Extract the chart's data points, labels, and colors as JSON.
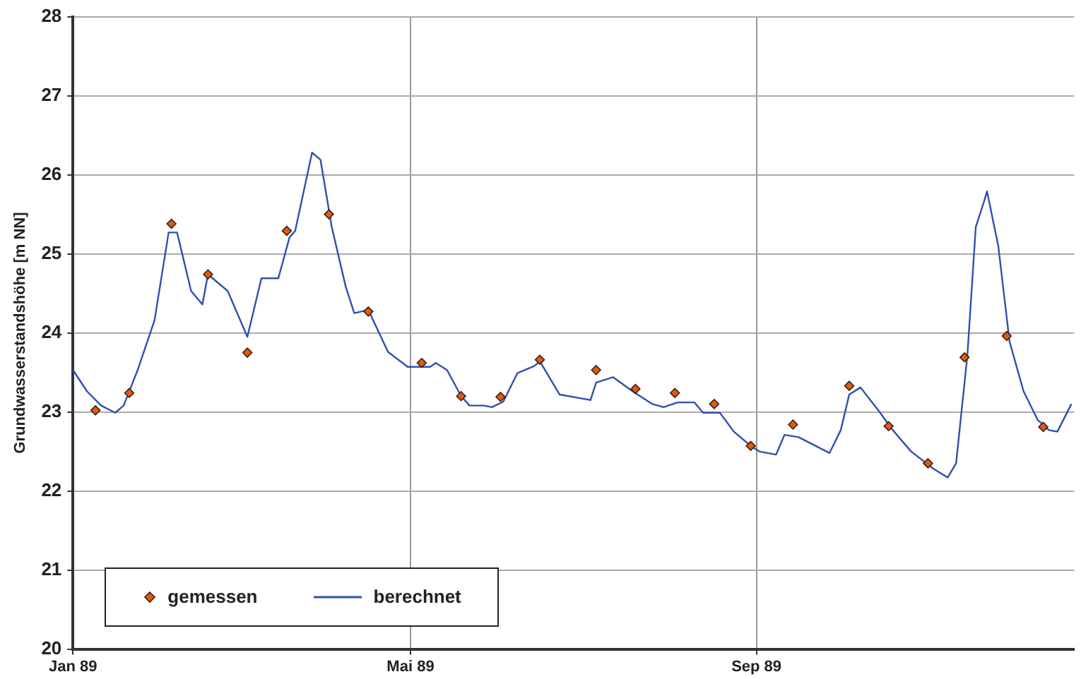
{
  "chart_data": {
    "type": "line",
    "ylabel": "Grundwasserstandshöhe [m NN]",
    "xlim": [
      "1989-01-01",
      "1989-12-23"
    ],
    "xticks": [
      {
        "value": "1989-01-01",
        "label": "Jan 89"
      },
      {
        "value": "1989-05-01",
        "label": "Mai 89"
      },
      {
        "value": "1989-09-01",
        "label": "Sep 89"
      }
    ],
    "ylim": [
      20,
      28
    ],
    "yticks": [
      20,
      21,
      22,
      23,
      24,
      25,
      26,
      27,
      28
    ],
    "grid": true,
    "legend": "bottom left",
    "series": [
      {
        "name": "gemessen",
        "type": "scatter",
        "marker": "diamond",
        "color": "#e05a10",
        "x": [
          "1989-01-09",
          "1989-01-21",
          "1989-02-05",
          "1989-02-18",
          "1989-03-04",
          "1989-03-18",
          "1989-04-02",
          "1989-04-16",
          "1989-05-05",
          "1989-05-19",
          "1989-06-02",
          "1989-06-16",
          "1989-07-06",
          "1989-07-20",
          "1989-08-03",
          "1989-08-17",
          "1989-08-30",
          "1989-09-14",
          "1989-10-04",
          "1989-10-18",
          "1989-11-01",
          "1989-11-14",
          "1989-11-29",
          "1989-12-12"
        ],
        "values": [
          23.02,
          23.24,
          25.38,
          24.74,
          23.75,
          25.29,
          25.5,
          24.27,
          23.62,
          23.2,
          23.19,
          23.66,
          23.53,
          23.29,
          23.24,
          23.1,
          22.57,
          22.84,
          23.33,
          22.82,
          22.35,
          23.69,
          23.96,
          22.81
        ]
      },
      {
        "name": "berechnet",
        "type": "line",
        "marker": "none",
        "line_style": "solid",
        "color": "#3050b0",
        "x": [
          "1989-01-01",
          "1989-01-06",
          "1989-01-11",
          "1989-01-16",
          "1989-01-19",
          "1989-01-24",
          "1989-01-30",
          "1989-02-04",
          "1989-02-07",
          "1989-02-12",
          "1989-02-16",
          "1989-02-18",
          "1989-02-25",
          "1989-03-04",
          "1989-03-09",
          "1989-03-15",
          "1989-03-19",
          "1989-03-21",
          "1989-03-27",
          "1989-03-30",
          "1989-04-03",
          "1989-04-08",
          "1989-04-11",
          "1989-04-16",
          "1989-04-23",
          "1989-04-30",
          "1989-05-08",
          "1989-05-10",
          "1989-05-14",
          "1989-05-19",
          "1989-05-22",
          "1989-05-27",
          "1989-05-30",
          "1989-06-03",
          "1989-06-08",
          "1989-06-14",
          "1989-06-16",
          "1989-06-23",
          "1989-07-01",
          "1989-07-04",
          "1989-07-06",
          "1989-07-12",
          "1989-07-19",
          "1989-07-26",
          "1989-07-30",
          "1989-08-04",
          "1989-08-10",
          "1989-08-13",
          "1989-08-19",
          "1989-08-24",
          "1989-08-30",
          "1989-09-02",
          "1989-09-08",
          "1989-09-11",
          "1989-09-16",
          "1989-09-27",
          "1989-10-01",
          "1989-10-04",
          "1989-10-08",
          "1989-10-15",
          "1989-10-19",
          "1989-10-26",
          "1989-11-03",
          "1989-11-08",
          "1989-11-11",
          "1989-11-15",
          "1989-11-18",
          "1989-11-21",
          "1989-11-22",
          "1989-11-26",
          "1989-11-30",
          "1989-12-05",
          "1989-12-10",
          "1989-12-14",
          "1989-12-17",
          "1989-12-22"
        ],
        "values": [
          23.53,
          23.26,
          23.08,
          22.99,
          23.08,
          23.53,
          24.16,
          25.27,
          25.27,
          24.53,
          24.36,
          24.74,
          24.53,
          23.95,
          24.69,
          24.69,
          25.21,
          25.29,
          26.28,
          26.19,
          25.34,
          24.58,
          24.25,
          24.29,
          23.76,
          23.57,
          23.57,
          23.62,
          23.53,
          23.2,
          23.08,
          23.08,
          23.06,
          23.13,
          23.49,
          23.58,
          23.64,
          23.22,
          23.17,
          23.15,
          23.37,
          23.44,
          23.26,
          23.1,
          23.06,
          23.12,
          23.12,
          22.99,
          22.99,
          22.75,
          22.57,
          22.5,
          22.46,
          22.71,
          22.68,
          22.48,
          22.77,
          23.22,
          23.31,
          22.99,
          22.79,
          22.5,
          22.28,
          22.17,
          22.35,
          23.71,
          25.34,
          25.67,
          25.79,
          25.1,
          23.89,
          23.26,
          22.9,
          22.77,
          22.75,
          23.1
        ]
      }
    ]
  }
}
